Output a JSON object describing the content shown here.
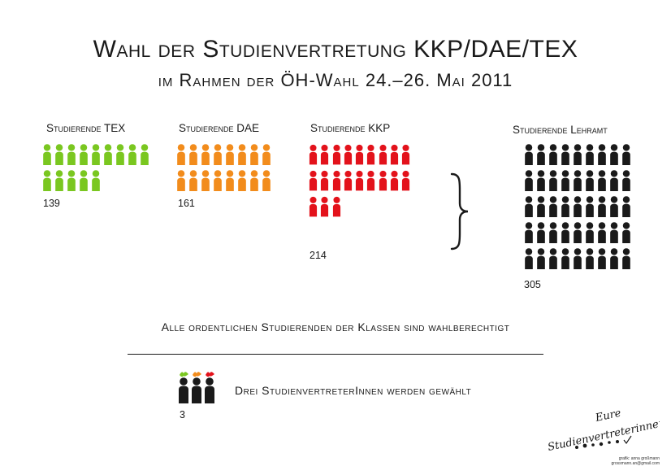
{
  "header": {
    "title": "Wahl der Studienvertretung KKP/DAE/TEX",
    "subtitle": "im Rahmen der ÖH-Wahl 24.–26. Mai 2011"
  },
  "colors": {
    "tex": "#7ac720",
    "dae": "#f28c1c",
    "kkp": "#e3121b",
    "lehramt": "#1a1a1a"
  },
  "groups": [
    {
      "id": "tex",
      "label": "Studierende TEX",
      "count": "139",
      "icons_shown": 14,
      "color": "#7ac720"
    },
    {
      "id": "dae",
      "label": "Studierende DAE",
      "count": "161",
      "icons_shown": 16,
      "color": "#f28c1c"
    },
    {
      "id": "kkp",
      "label": "Studierende KKP",
      "count": "214",
      "icons_shown": 21,
      "color": "#e3121b"
    },
    {
      "id": "lehramt",
      "label": "Studierende Lehramt",
      "count": "305",
      "icons_shown": 45,
      "color": "#1a1a1a"
    }
  ],
  "note": "Alle ordentlichen Studierenden der Klassen sind wahlberechtigt",
  "elected": {
    "text": "Drei StudienvertreterInnen werden gewählt",
    "count": "3",
    "leaf_colors": [
      "#7ac720",
      "#f28c1c",
      "#e3121b"
    ]
  },
  "signature": {
    "line1": "Eure",
    "line2": "Studienvertreterinnen"
  },
  "credit": {
    "line1": "grafik: anna großmann",
    "line2": "grossmann.an@gmail.com"
  }
}
